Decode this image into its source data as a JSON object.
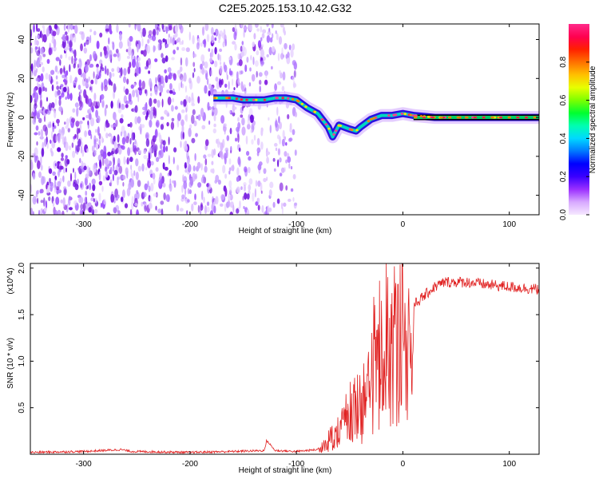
{
  "title": "C2E5.2025.153.10.42.G32",
  "colors": {
    "signal": "#e02020",
    "spectrum_scatter": "#7a2cf0",
    "line_trace": "#00c8b0",
    "frame": "#000000"
  },
  "chart_data": [
    {
      "type": "heatmap",
      "name": "spectrogram",
      "xlabel": "Height of straight line (km)",
      "ylabel": "Frequency (Hz)",
      "xlim": [
        -350,
        128
      ],
      "ylim": [
        -50,
        48
      ],
      "x_ticks": [
        -300,
        -200,
        -100,
        0,
        100
      ],
      "y_ticks": [
        -40,
        -20,
        0,
        20,
        40
      ],
      "colorbar": {
        "label": "Normalized spectral amplitude",
        "range": [
          0,
          1
        ],
        "ticks": [
          0.0,
          0.2,
          0.4,
          0.6,
          0.8
        ],
        "colormap": [
          "#f6e8ff",
          "#d7a8ff",
          "#9b30ff",
          "#3a00ff",
          "#0000ff",
          "#0078ff",
          "#00d8ff",
          "#00ffb0",
          "#00ff30",
          "#7cff00",
          "#e8ff00",
          "#ffc000",
          "#ff7000",
          "#ff2000",
          "#ff0050",
          "#ff2a8a"
        ]
      },
      "noise_region_x": [
        -350,
        -100
      ],
      "trace": {
        "x": [
          -178,
          -170,
          -160,
          -150,
          -140,
          -130,
          -120,
          -110,
          -100,
          -90,
          -80,
          -70,
          -66,
          -60,
          -50,
          -44,
          -40,
          -30,
          -20,
          -10,
          0,
          10,
          30,
          60,
          90,
          128
        ],
        "y": [
          10,
          10,
          10,
          9,
          9,
          9,
          10,
          10,
          9,
          5,
          2,
          -5,
          -10,
          -4,
          -6,
          -7,
          -5,
          -1,
          1,
          1,
          2,
          1,
          0,
          0,
          0,
          0
        ]
      }
    },
    {
      "type": "line",
      "name": "snr",
      "xlabel": "Height of straight line (km)",
      "ylabel": "SNR (10 * v/v)",
      "y_multiplier": "(x10^4)",
      "xlim": [
        -350,
        128
      ],
      "ylim": [
        0,
        2.05
      ],
      "x_ticks": [
        -300,
        -200,
        -100,
        0,
        100
      ],
      "y_ticks": [
        0.5,
        1.0,
        1.5,
        2.0
      ],
      "series": [
        {
          "x": [
            -350,
            -300,
            -265,
            -255,
            -200,
            -160,
            -130,
            -128,
            -120,
            -100,
            -80,
            -70,
            -60,
            -50,
            -40,
            -30,
            -20,
            -15,
            -10,
            0,
            10,
            20,
            30,
            40,
            50,
            60,
            80,
            100,
            128
          ],
          "y": [
            0.02,
            0.03,
            0.05,
            0.03,
            0.02,
            0.03,
            0.04,
            0.15,
            0.04,
            0.03,
            0.05,
            0.15,
            0.25,
            0.45,
            0.6,
            0.9,
            1.15,
            1.3,
            1.2,
            1.45,
            1.6,
            1.7,
            1.8,
            1.85,
            1.85,
            1.85,
            1.82,
            1.8,
            1.77
          ]
        }
      ]
    }
  ]
}
